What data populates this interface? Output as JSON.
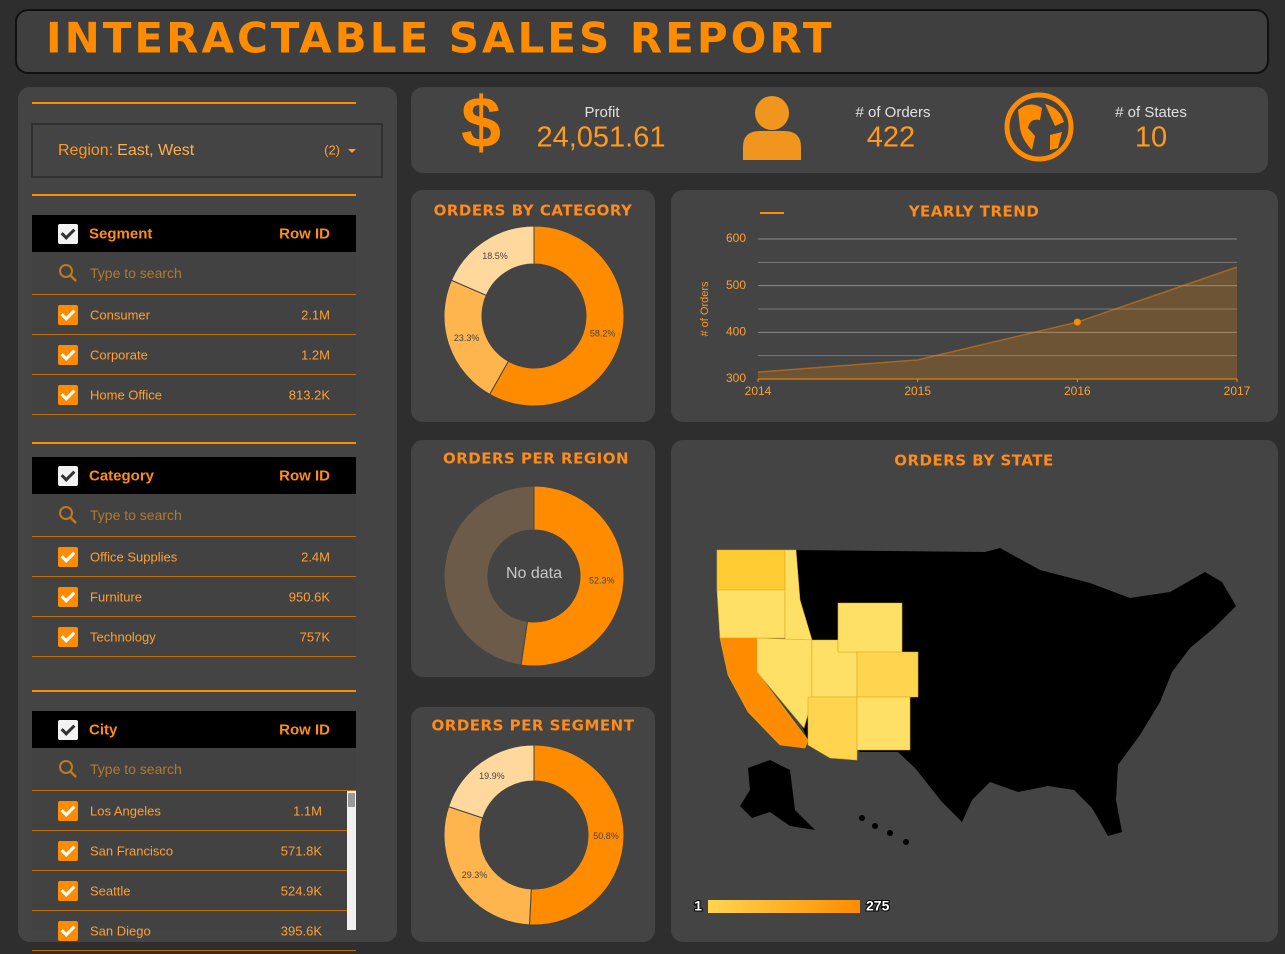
{
  "header": {
    "title": "INTERACTABLE SALES REPORT"
  },
  "region_filter": {
    "label": "Region:",
    "value": "East, West",
    "count": "(2)"
  },
  "filters": [
    {
      "title": "Segment",
      "column": "Row ID",
      "search_placeholder": "Type to search",
      "rows": [
        [
          "Consumer",
          "2.1M"
        ],
        [
          "Corporate",
          "1.2M"
        ],
        [
          "Home Office",
          "813.2K"
        ]
      ]
    },
    {
      "title": "Category",
      "column": "Row ID",
      "search_placeholder": "Type to search",
      "rows": [
        [
          "Office Supplies",
          "2.4M"
        ],
        [
          "Furniture",
          "950.6K"
        ],
        [
          "Technology",
          "757K"
        ]
      ]
    },
    {
      "title": "City",
      "column": "Row ID",
      "search_placeholder": "Type to search",
      "rows": [
        [
          "Los Angeles",
          "1.1M"
        ],
        [
          "San Francisco",
          "571.8K"
        ],
        [
          "Seattle",
          "524.9K"
        ],
        [
          "San Diego",
          "395.6K"
        ]
      ]
    }
  ],
  "kpis": [
    {
      "icon": "$",
      "label": "Profit",
      "value": "24,051.61"
    },
    {
      "label": "# of Orders",
      "value": "422"
    },
    {
      "label": "# of States",
      "value": "10"
    }
  ],
  "chart_data": [
    {
      "type": "pie",
      "title": "ORDERS BY CATEGORY",
      "values": [
        58.2,
        23.3,
        18.5
      ],
      "value_labels": [
        "58.2%",
        "23.3%",
        "18.5%"
      ],
      "colors": [
        "#ff8c00",
        "#ffb54d",
        "#ffd89e"
      ]
    },
    {
      "type": "line",
      "title": "YEARLY TREND",
      "ylabel": "# of Orders",
      "x": [
        2014,
        2015,
        2016,
        2017
      ],
      "values": [
        315,
        341,
        422,
        540
      ],
      "color": "#ff8c00",
      "xlim": [
        2014,
        2017
      ],
      "xticks": [
        2014,
        2015,
        2016,
        2017
      ],
      "ylim": [
        300,
        600
      ],
      "yticks": [
        300,
        400,
        500,
        600
      ],
      "minor_yticks": [
        350,
        450,
        550
      ],
      "grid": true,
      "area": true,
      "marker_index": 2
    },
    {
      "type": "pie",
      "title": "ORDERS PER REGION",
      "values": [
        52.3,
        47.7
      ],
      "value_labels": [
        "52.3%",
        null
      ],
      "colors": [
        "#ff8c00",
        "#6b5b48"
      ],
      "center_text": "No data"
    },
    {
      "type": "pie",
      "title": "ORDERS PER SEGMENT",
      "values": [
        50.8,
        29.3,
        19.9
      ],
      "value_labels": [
        "50.8%",
        "29.3%",
        "19.9%"
      ],
      "colors": [
        "#ff8c00",
        "#ffb54d",
        "#ffd89e"
      ]
    },
    {
      "type": "map",
      "title": "ORDERS BY STATE",
      "colorbar": {
        "range": [
          1,
          275
        ],
        "colors": [
          "#ffd54f",
          "#ff8c00"
        ]
      }
    }
  ]
}
